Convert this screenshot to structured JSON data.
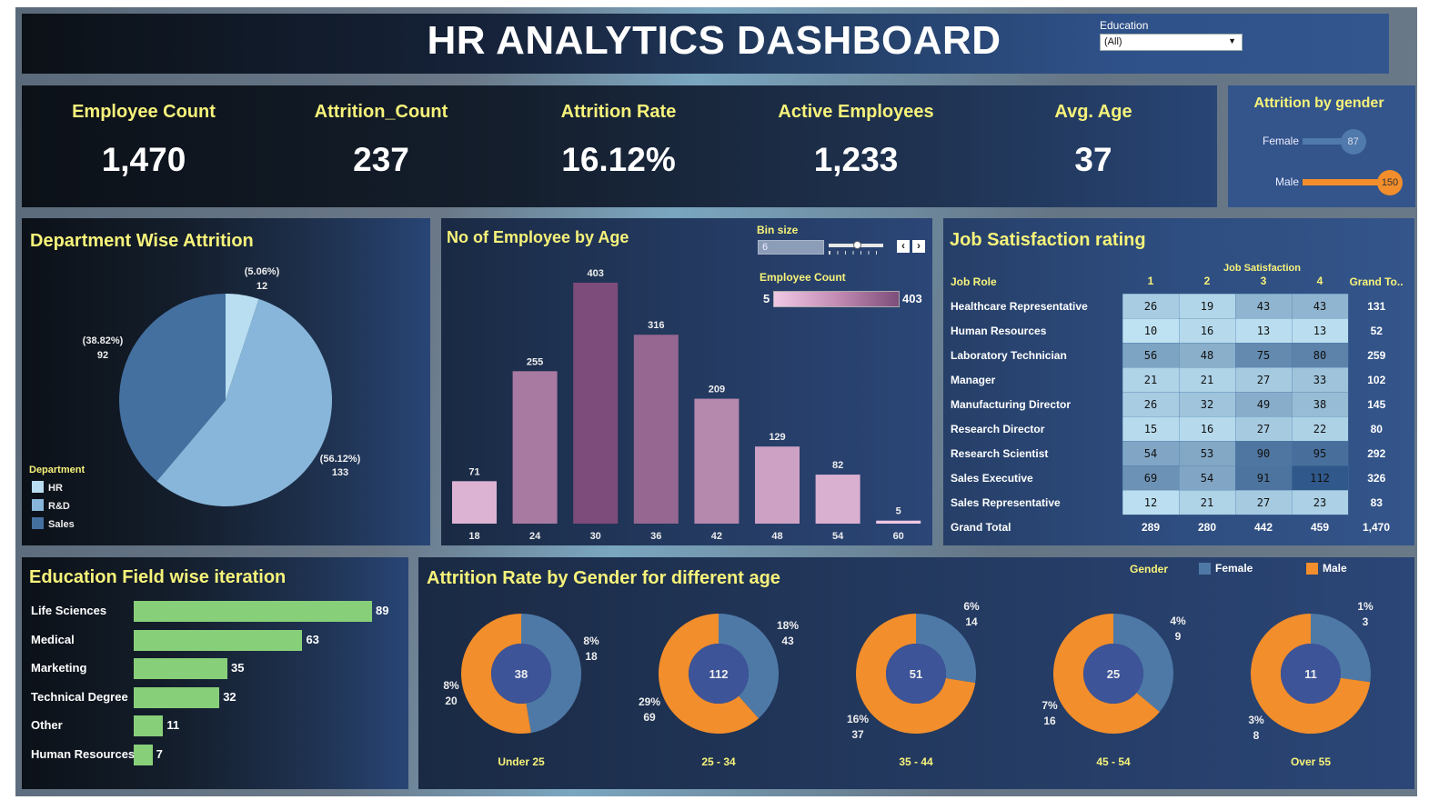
{
  "header": {
    "title": "HR ANALYTICS DASHBOARD",
    "filter": {
      "label": "Education",
      "value": "(All)"
    }
  },
  "kpis": [
    {
      "label": "Employee Count",
      "value": "1,470"
    },
    {
      "label": "Attrition_Count",
      "value": "237"
    },
    {
      "label": "Attrition Rate",
      "value": "16.12%"
    },
    {
      "label": "Active Employees",
      "value": "1,233"
    },
    {
      "label": "Avg. Age",
      "value": "37"
    }
  ],
  "attrition_by_gender": {
    "title": "Attrition by gender",
    "items": [
      {
        "label": "Female",
        "value": 87,
        "display": "87",
        "color": "#4f7aab"
      },
      {
        "label": "Male",
        "value": 150,
        "display": "150",
        "color": "#f28e2b"
      }
    ]
  },
  "colors": {
    "title_yellow": "#f7f37a",
    "female": "#4e79a7",
    "male": "#f28e2b",
    "bar_green": "#88cf7a",
    "donut_center": "#3d5499"
  },
  "chart_data": [
    {
      "id": "department",
      "type": "pie",
      "title": "Department Wise Attrition",
      "legend_title": "Department",
      "legend_position": "bottom-left",
      "slices": [
        {
          "label": "HR",
          "value": 12,
          "pct": "(5.06%)",
          "color": "#b9ddf1"
        },
        {
          "label": "R&D",
          "value": 133,
          "pct": "(56.12%)",
          "color": "#88b6da"
        },
        {
          "label": "Sales",
          "value": 92,
          "pct": "(38.82%)",
          "color": "#4470a0"
        }
      ]
    },
    {
      "id": "age",
      "type": "bar",
      "title": "No of Employee by Age",
      "categories": [
        "18",
        "24",
        "30",
        "36",
        "42",
        "48",
        "54",
        "60"
      ],
      "values": [
        71,
        255,
        403,
        316,
        209,
        129,
        82,
        5
      ],
      "color_legend": {
        "title": "Employee Count",
        "min": "5",
        "max": "403"
      },
      "bin_size": {
        "label": "Bin size",
        "value": "6"
      },
      "ylim": [
        0,
        403
      ]
    },
    {
      "id": "job_satisfaction",
      "type": "heatmap",
      "title": "Job Satisfaction rating",
      "column_group": "Job Satisfaction",
      "row_header": "Job Role",
      "columns": [
        "1",
        "2",
        "3",
        "4"
      ],
      "total_header": "Grand To..",
      "rows": [
        {
          "role": "Healthcare Representative",
          "values": [
            26,
            19,
            43,
            43
          ],
          "total": "131"
        },
        {
          "role": "Human Resources",
          "values": [
            10,
            16,
            13,
            13
          ],
          "total": "52"
        },
        {
          "role": "Laboratory Technician",
          "values": [
            56,
            48,
            75,
            80
          ],
          "total": "259"
        },
        {
          "role": "Manager",
          "values": [
            21,
            21,
            27,
            33
          ],
          "total": "102"
        },
        {
          "role": "Manufacturing Director",
          "values": [
            26,
            32,
            49,
            38
          ],
          "total": "145"
        },
        {
          "role": "Research Director",
          "values": [
            15,
            16,
            27,
            22
          ],
          "total": "80"
        },
        {
          "role": "Research Scientist",
          "values": [
            54,
            53,
            90,
            95
          ],
          "total": "292"
        },
        {
          "role": "Sales Executive",
          "values": [
            69,
            54,
            91,
            112
          ],
          "total": "326"
        },
        {
          "role": "Sales Representative",
          "values": [
            12,
            21,
            27,
            23
          ],
          "total": "83"
        }
      ],
      "grand_total": {
        "label": "Grand Total",
        "values": [
          "289",
          "280",
          "442",
          "459"
        ],
        "total": "1,470"
      }
    },
    {
      "id": "education_field",
      "type": "bar",
      "orientation": "horizontal",
      "title": "Education Field wise iteration",
      "categories": [
        "Life Sciences",
        "Medical",
        "Marketing",
        "Technical Degree",
        "Other",
        "Human Resources"
      ],
      "values": [
        89,
        63,
        35,
        32,
        11,
        7
      ],
      "xlim": [
        0,
        89
      ]
    },
    {
      "id": "attrition_gender_age",
      "type": "pie",
      "variant": "donut",
      "title": "Attrition Rate by Gender for different age",
      "legend": {
        "title": "Gender",
        "position": "top-right",
        "items": [
          {
            "label": "Female",
            "color": "#4e79a7"
          },
          {
            "label": "Male",
            "color": "#f28e2b"
          }
        ]
      },
      "groups": [
        {
          "label": "Under 25",
          "total": "38",
          "female": 18,
          "female_pct": "8%",
          "male": 20,
          "male_pct": "8%"
        },
        {
          "label": "25 - 34",
          "total": "112",
          "female": 43,
          "female_pct": "18%",
          "male": 69,
          "male_pct": "29%"
        },
        {
          "label": "35 - 44",
          "total": "51",
          "female": 14,
          "female_pct": "6%",
          "male": 37,
          "male_pct": "16%"
        },
        {
          "label": "45 - 54",
          "total": "25",
          "female": 9,
          "female_pct": "4%",
          "male": 16,
          "male_pct": "7%"
        },
        {
          "label": "Over 55",
          "total": "11",
          "female": 3,
          "female_pct": "1%",
          "male": 8,
          "male_pct": "3%"
        }
      ]
    }
  ]
}
